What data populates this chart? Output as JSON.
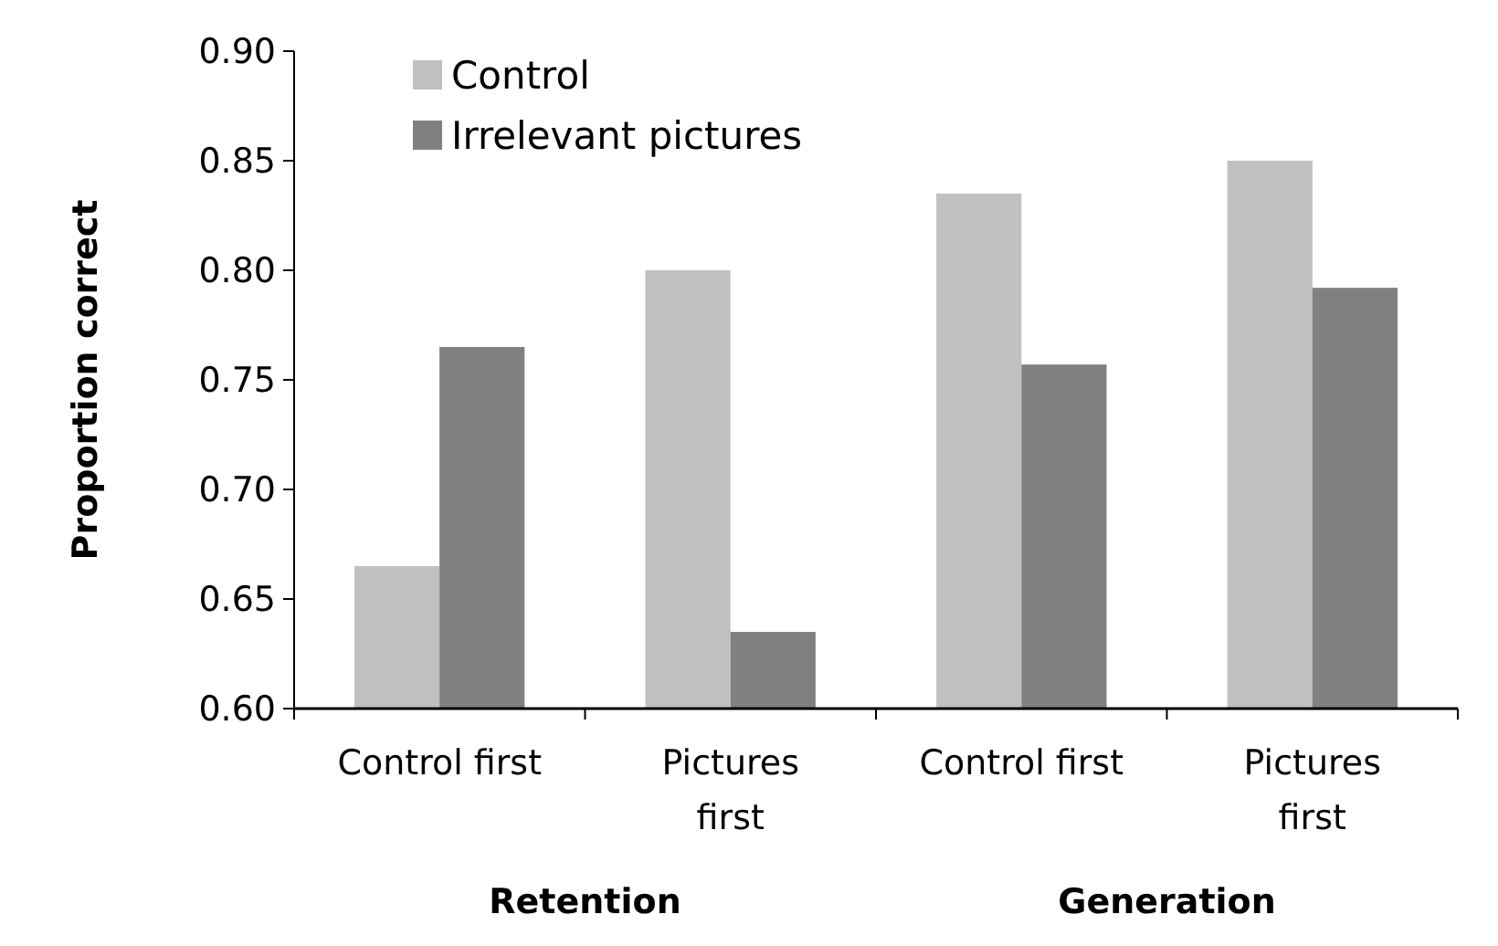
{
  "chart_data": {
    "type": "bar",
    "ylabel": "Proportion correct",
    "categories": [
      "Control first",
      "Pictures first",
      "Control first",
      "Pictures first"
    ],
    "series": [
      {
        "name": "Control",
        "color": "#c0c0c0",
        "values": [
          0.665,
          0.8,
          0.835,
          0.85
        ]
      },
      {
        "name": "Irrelevant pictures",
        "color": "#808080",
        "values": [
          0.765,
          0.635,
          0.757,
          0.792
        ]
      }
    ],
    "ylim": [
      0.6,
      0.9
    ],
    "yticks": [
      {
        "value": 0.6,
        "label": "0.60"
      },
      {
        "value": 0.65,
        "label": "0.65"
      },
      {
        "value": 0.7,
        "label": "0.70"
      },
      {
        "value": 0.75,
        "label": "0.75"
      },
      {
        "value": 0.8,
        "label": "0.80"
      },
      {
        "value": 0.85,
        "label": "0.85"
      },
      {
        "value": 0.9,
        "label": "0.90"
      }
    ],
    "annotations": [
      "Retention",
      "Generation"
    ],
    "legend": "top left"
  }
}
